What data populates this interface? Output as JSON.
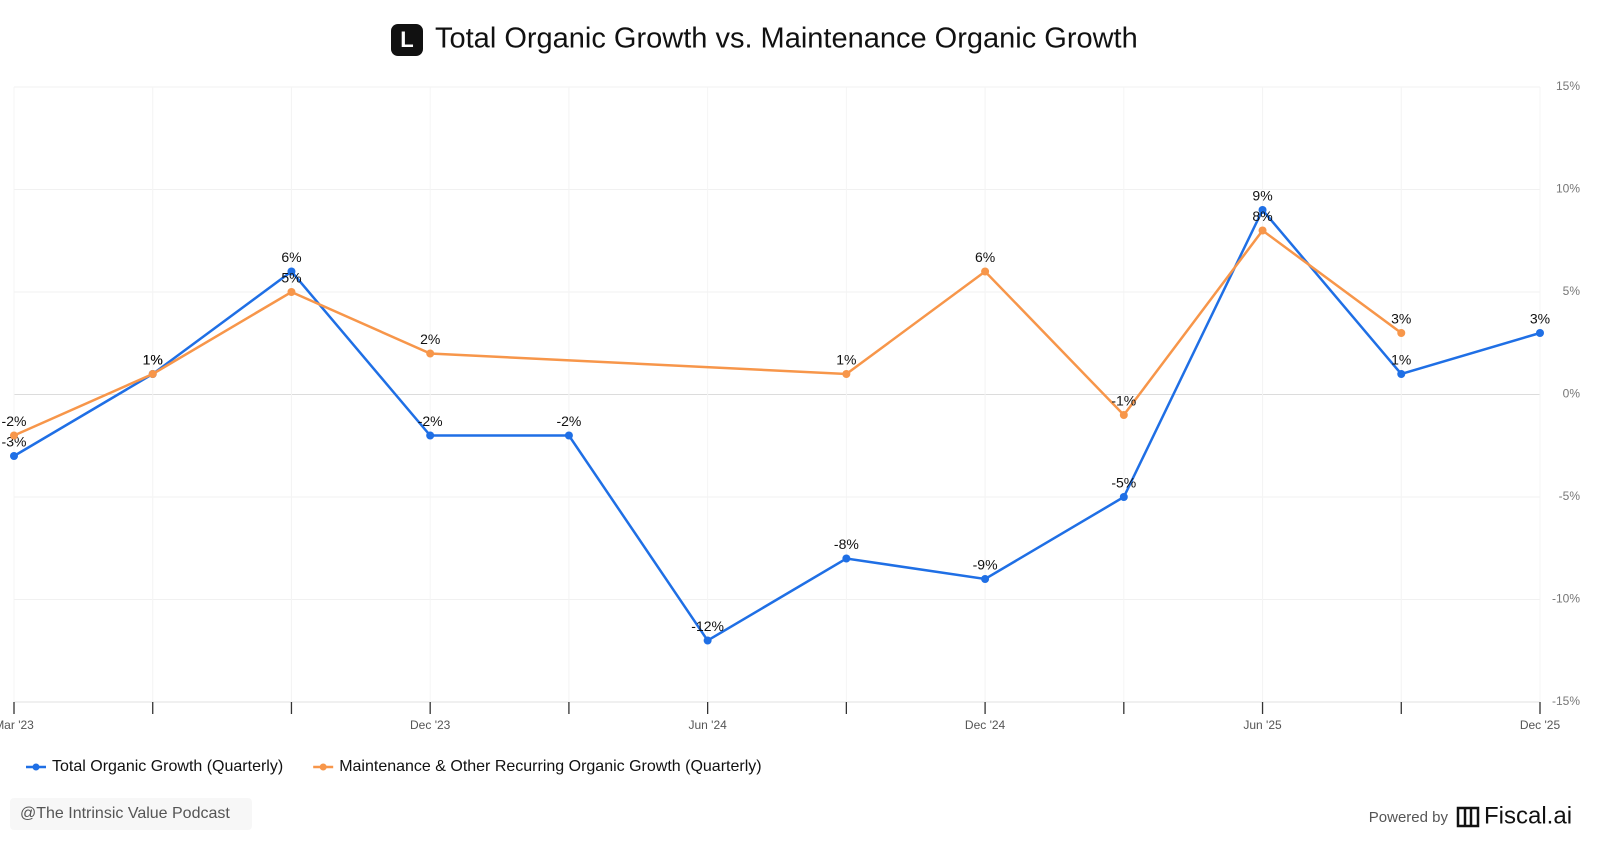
{
  "logo": "L",
  "chart_data": {
    "type": "line",
    "title": "Total Organic Growth vs. Maintenance Organic Growth",
    "categories": [
      "Mar '23",
      null,
      null,
      "Dec '23",
      null,
      "Jun '24",
      null,
      "Dec '24",
      null,
      "Jun '25",
      null,
      "Dec '25"
    ],
    "series": [
      {
        "name": "Total Organic Growth (Quarterly)",
        "color": "#1f6fe5",
        "values": [
          -3,
          1,
          6,
          -2,
          -2,
          -12,
          -8,
          -9,
          -5,
          9,
          1,
          3
        ],
        "value_labels": [
          "-3%",
          "1%",
          "6%",
          "-2%",
          "-2%",
          "-12%",
          "-8%",
          "-9%",
          "-5%",
          "9%",
          "1%",
          "3%"
        ]
      },
      {
        "name": "Maintenance & Other Recurring Organic Growth (Quarterly)",
        "color": "#f7964a",
        "values": [
          -2,
          1,
          5,
          2,
          null,
          null,
          1,
          6,
          -1,
          8,
          3,
          null
        ],
        "value_labels": [
          "-2%",
          "1%",
          "5%",
          "2%",
          null,
          null,
          "1%",
          "6%",
          "-1%",
          "8%",
          "3%",
          null
        ]
      }
    ],
    "connect_gaps": true,
    "ylim": [
      -15,
      15
    ],
    "yticks": [
      {
        "value": -15,
        "label": "-15%"
      },
      {
        "value": -10,
        "label": "-10%"
      },
      {
        "value": -5,
        "label": "-5%"
      },
      {
        "value": 0,
        "label": "0%"
      },
      {
        "value": 5,
        "label": "5%"
      },
      {
        "value": 10,
        "label": "10%"
      },
      {
        "value": 15,
        "label": "15%"
      }
    ],
    "grid": true,
    "legend": "bottom-left"
  },
  "footer": {
    "credit": "@The Intrinsic Value Podcast",
    "powered_by": "Powered by",
    "brand": "Fiscal.ai"
  }
}
